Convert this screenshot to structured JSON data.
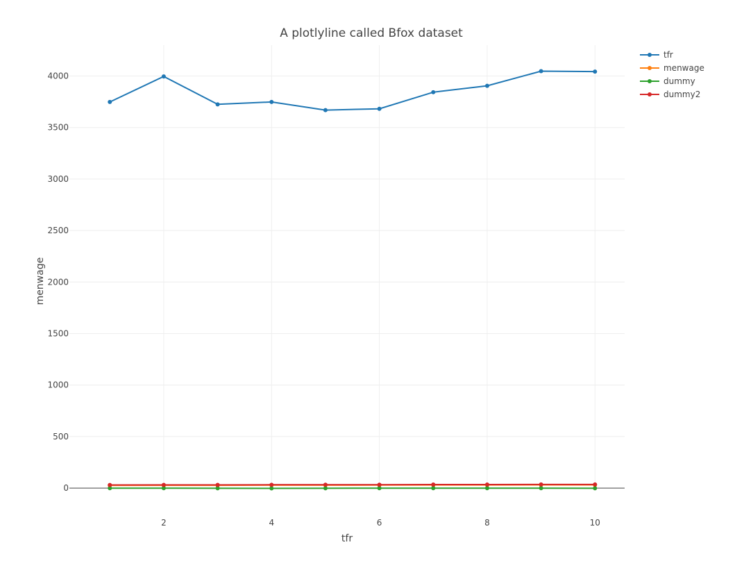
{
  "chart_data": {
    "type": "line",
    "title": "A plotlyline called Bfox dataset",
    "xlabel": "tfr",
    "ylabel": "menwage",
    "x": [
      1,
      2,
      3,
      4,
      5,
      6,
      7,
      8,
      9,
      10
    ],
    "xlim": [
      0.25,
      10.55
    ],
    "ylim": [
      -215,
      4300
    ],
    "x_ticks": [
      2,
      4,
      6,
      8,
      10
    ],
    "y_ticks": [
      0,
      500,
      1000,
      1500,
      2000,
      2500,
      3000,
      3500,
      4000
    ],
    "grid": true,
    "legend_position": "top-right",
    "series": [
      {
        "name": "tfr",
        "color": "#1f77b4",
        "values": [
          3748,
          3996,
          3725,
          3748,
          3669,
          3682,
          3843,
          3905,
          4047,
          4043
        ]
      },
      {
        "name": "menwage",
        "color": "#ff7f0e",
        "values": [
          26,
          27,
          27,
          28,
          28,
          29,
          30,
          30,
          31,
          31
        ]
      },
      {
        "name": "dummy",
        "color": "#2ca02c",
        "values": [
          -1,
          -1,
          -2,
          -3,
          -2,
          -1,
          -1,
          -1,
          -1,
          -2
        ]
      },
      {
        "name": "dummy2",
        "color": "#d62728",
        "values": [
          30,
          31,
          31,
          32,
          33,
          33,
          34,
          34,
          35,
          35
        ]
      }
    ]
  }
}
